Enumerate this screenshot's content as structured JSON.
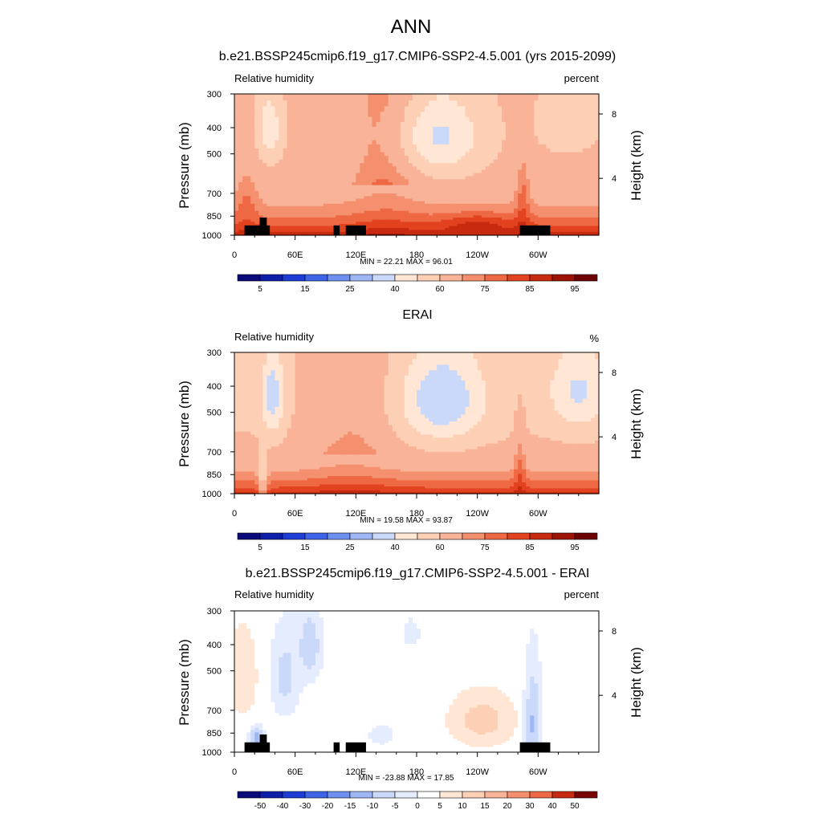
{
  "figure": {
    "title": "ANN",
    "colors": {
      "abs_levels": [
        "#0a0a7a",
        "#0d1ea8",
        "#1e3dd6",
        "#3e64e8",
        "#6d8ff0",
        "#9fb6f5",
        "#cad8fa",
        "#ffe6d5",
        "#fdd0b6",
        "#f9b398",
        "#f5906f",
        "#ef6844",
        "#e2421f",
        "#c72a0e",
        "#9c1306",
        "#6e0202"
      ],
      "diff_levels": [
        "#0a0a7a",
        "#0d1ea8",
        "#1e3dd6",
        "#3e64e8",
        "#6d8ff0",
        "#9fb6f5",
        "#cad8fa",
        "#e4ecfd",
        "#ffffff",
        "#ffe6d5",
        "#fdd0b6",
        "#f9b398",
        "#f5906f",
        "#ef6844",
        "#c72a0e",
        "#7a0404"
      ],
      "topography": "#000000"
    }
  },
  "panels": [
    {
      "title": "b.e21.BSSP245cmip6.f19_g17.CMIP6-SSP2-4.5.001 (yrs 2015-2099)",
      "left_label": "Relative humidity",
      "right_label": "percent",
      "stats": "MIN =  22.21  MAX =  96.01"
    },
    {
      "title": "ERAI",
      "left_label": "Relative humidity",
      "right_label": "%",
      "stats": "MIN =  19.58  MAX =  93.87"
    },
    {
      "title": "b.e21.BSSP245cmip6.f19_g17.CMIP6-SSP2-4.5.001 - ERAI",
      "left_label": "Relative humidity",
      "right_label": "percent",
      "stats": "MIN = -23.88  MAX =  17.85"
    }
  ],
  "chart_data": [
    {
      "type": "heatmap",
      "xlabel": "",
      "ylabel": "Pressure (mb)",
      "y2label": "Height (km)",
      "x_ticks": [
        "0",
        "60E",
        "120E",
        "180",
        "120W",
        "60W"
      ],
      "x_tick_lon": [
        0,
        60,
        120,
        180,
        240,
        300
      ],
      "xlim": [
        0,
        360
      ],
      "y_ticks": [
        "300",
        "400",
        "500",
        "700",
        "850",
        "1000"
      ],
      "y_tick_p": [
        300,
        400,
        500,
        700,
        850,
        1000
      ],
      "ylim": [
        1000,
        300
      ],
      "y2_ticks": [
        "8",
        "4"
      ],
      "y2_tick_p": [
        356,
        616
      ],
      "colorbar_labels": [
        "5",
        "15",
        "25",
        "40",
        "60",
        "75",
        "85",
        "95"
      ],
      "colorbar_label_slots": [
        1,
        3,
        5,
        7,
        9,
        11,
        13,
        15
      ],
      "min": 22.21,
      "max": 96.01,
      "field": "model",
      "topography": [
        [
          10,
          35,
          920
        ],
        [
          25,
          32,
          860
        ],
        [
          98,
          104,
          920
        ],
        [
          110,
          130,
          920
        ],
        [
          282,
          312,
          920
        ]
      ]
    },
    {
      "type": "heatmap",
      "xlabel": "",
      "ylabel": "Pressure (mb)",
      "y2label": "Height (km)",
      "x_ticks": [
        "0",
        "60E",
        "120E",
        "180",
        "120W",
        "60W"
      ],
      "x_tick_lon": [
        0,
        60,
        120,
        180,
        240,
        300
      ],
      "xlim": [
        0,
        360
      ],
      "y_ticks": [
        "300",
        "400",
        "500",
        "700",
        "850",
        "1000"
      ],
      "y_tick_p": [
        300,
        400,
        500,
        700,
        850,
        1000
      ],
      "ylim": [
        1000,
        300
      ],
      "y2_ticks": [
        "8",
        "4"
      ],
      "y2_tick_p": [
        356,
        616
      ],
      "colorbar_labels": [
        "5",
        "15",
        "25",
        "40",
        "60",
        "75",
        "85",
        "95"
      ],
      "colorbar_label_slots": [
        1,
        3,
        5,
        7,
        9,
        11,
        13,
        15
      ],
      "min": 19.58,
      "max": 93.87,
      "field": "obs",
      "topography": []
    },
    {
      "type": "heatmap",
      "xlabel": "",
      "ylabel": "Pressure (mb)",
      "y2label": "Height (km)",
      "x_ticks": [
        "0",
        "60E",
        "120E",
        "180",
        "120W",
        "60W"
      ],
      "x_tick_lon": [
        0,
        60,
        120,
        180,
        240,
        300
      ],
      "xlim": [
        0,
        360
      ],
      "y_ticks": [
        "300",
        "400",
        "500",
        "700",
        "850",
        "1000"
      ],
      "y_tick_p": [
        300,
        400,
        500,
        700,
        850,
        1000
      ],
      "ylim": [
        1000,
        300
      ],
      "y2_ticks": [
        "8",
        "4"
      ],
      "y2_tick_p": [
        356,
        616
      ],
      "colorbar_labels": [
        "-50",
        "-40",
        "-30",
        "-20",
        "-15",
        "-10",
        "-5",
        "0",
        "5",
        "10",
        "15",
        "20",
        "30",
        "40",
        "50"
      ],
      "colorbar_label_slots": [
        1,
        2,
        3,
        4,
        5,
        6,
        7,
        8,
        9,
        10,
        11,
        12,
        13,
        14,
        15
      ],
      "min": -23.88,
      "max": 17.85,
      "field": "diff",
      "topography": [
        [
          10,
          35,
          920
        ],
        [
          25,
          32,
          860
        ],
        [
          98,
          104,
          920
        ],
        [
          110,
          130,
          920
        ],
        [
          282,
          312,
          920
        ]
      ]
    }
  ]
}
